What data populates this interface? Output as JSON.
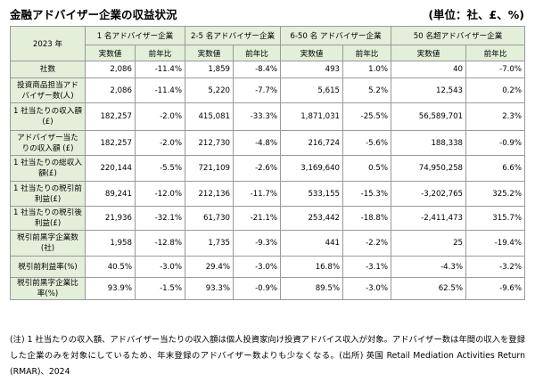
{
  "title": "金融アドバイザー企業の収益状況",
  "unit": "(単位：社、£、%)",
  "header": {
    "year": "2023 年",
    "groups": [
      "1 名アドバイザー企業",
      "2-5 名アドバイザー企業",
      "6-50 名 アドバイザー企業",
      "50 名超アドバイザー企業"
    ],
    "sub_actual": "実数値",
    "sub_prev": "前年比"
  },
  "rows": [
    {
      "label": "社数",
      "cells": [
        "2,086",
        "-11.4%",
        "1,859",
        "-8.4%",
        "493",
        "1.0%",
        "40",
        "-7.0%"
      ]
    },
    {
      "label": "投資商品担当アドバイザー数(人)",
      "cells": [
        "2,086",
        "-11.4%",
        "5,220",
        "-7.7%",
        "5,615",
        "5.2%",
        "12,543",
        "0.2%"
      ]
    },
    {
      "label": "1 社当たりの収入額(£)",
      "cells": [
        "182,257",
        "-2.0%",
        "415,081",
        "-33.3%",
        "1,871,031",
        "-25.5%",
        "56,589,701",
        "2.3%"
      ]
    },
    {
      "label": "アドバイザー当たりの収入額 (£)",
      "cells": [
        "182,257",
        "-2.0%",
        "212,730",
        "-4.8%",
        "216,724",
        "-5.6%",
        "188,338",
        "-0.9%"
      ]
    },
    {
      "label": "1 社当たりの総収入額(£)",
      "cells": [
        "220,144",
        "-5.5%",
        "721,109",
        "-2.6%",
        "3,169,640",
        "0.5%",
        "74,950,258",
        "6.6%"
      ]
    },
    {
      "label": "1 社当たりの税引前利益(£)",
      "cells": [
        "89,241",
        "-12.0%",
        "212,136",
        "-11.7%",
        "533,155",
        "-15.3%",
        "-3,202,765",
        "325.2%"
      ]
    },
    {
      "label": "1 社当たりの税引後利益(£)",
      "cells": [
        "21,936",
        "-32.1%",
        "61,730",
        "-21.1%",
        "253,442",
        "-18.8%",
        "-2,411,473",
        "315.7%"
      ]
    },
    {
      "label": "税引前黒字企業数(社)",
      "cells": [
        "1,958",
        "-12.8%",
        "1,735",
        "-9.3%",
        "441",
        "-2.2%",
        "25",
        "-19.4%"
      ]
    },
    {
      "label": "税引前利益率(%)",
      "cells": [
        "40.5%",
        "-3.0%",
        "29.4%",
        "-3.0%",
        "16.8%",
        "-3.1%",
        "-4.3%",
        "-3.2%"
      ]
    },
    {
      "label": "税引前黒字企業比率(%)",
      "cells": [
        "93.9%",
        "-1.5%",
        "93.3%",
        "-0.9%",
        "89.5%",
        "-3.0%",
        "62.5%",
        "-9.6%"
      ]
    }
  ],
  "note": "(注) 1 社当たりの収入額、アドバイザー当たりの収入額は個人投資家向け投資アドバイス収入が対象。アドバイザー数は年間の収入を登録した企業のみを対象にしているため、年末登録のアドバイザー数よりも少なくなる。(出所) 英国 Retail Mediation Activities Return (RMAR)、2024"
}
